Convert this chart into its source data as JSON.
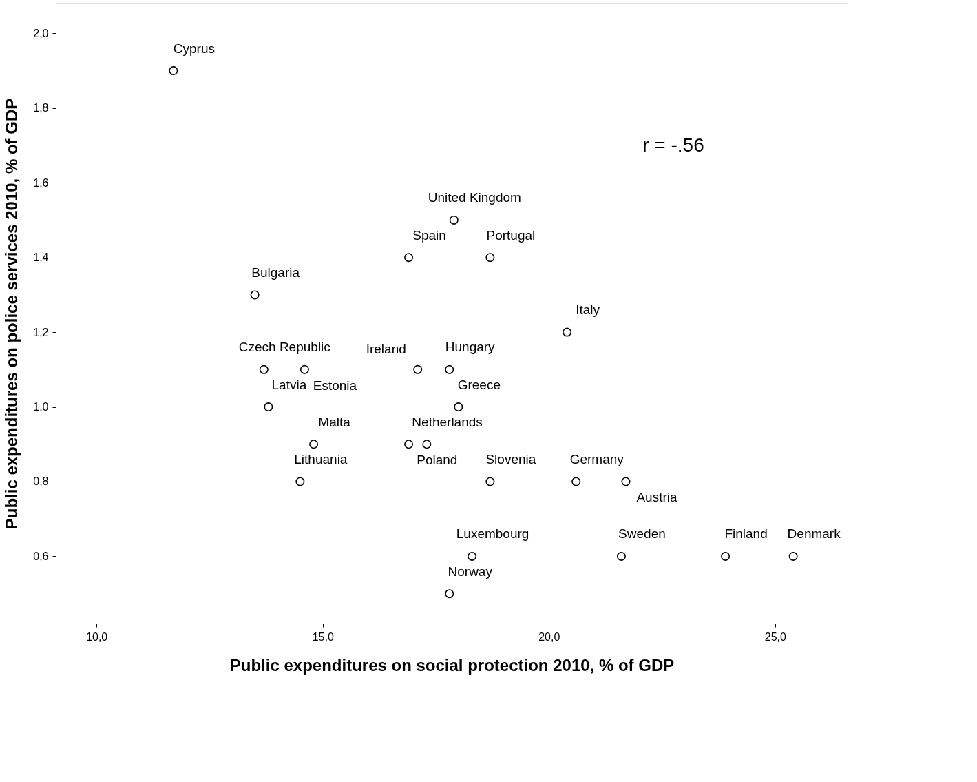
{
  "chart_data": {
    "type": "scatter",
    "xlabel": "Public expenditures on social protection 2010, % of GDP",
    "ylabel": "Public expenditures on police services 2010, % of GDP",
    "x": [
      11.7,
      17.9,
      16.9,
      18.7,
      13.5,
      20.4,
      13.7,
      14.6,
      13.8,
      17.1,
      17.8,
      18.0,
      14.8,
      16.9,
      17.3,
      14.5,
      18.7,
      20.6,
      21.7,
      18.3,
      21.6,
      23.9,
      25.4,
      17.8
    ],
    "values": [
      1.9,
      1.5,
      1.4,
      1.4,
      1.3,
      1.2,
      1.1,
      1.1,
      1.0,
      1.1,
      1.1,
      1.0,
      0.9,
      0.9,
      0.9,
      0.8,
      0.8,
      0.8,
      0.8,
      0.6,
      0.6,
      0.6,
      0.6,
      0.5
    ],
    "color": "#000000",
    "marker": "circle",
    "xlim": [
      9.1,
      26.6
    ],
    "ylim": [
      0.42,
      2.08
    ],
    "xticks": [
      {
        "value": 10,
        "label": "10,0"
      },
      {
        "value": 15,
        "label": "15,0"
      },
      {
        "value": 20,
        "label": "20,0"
      },
      {
        "value": 25,
        "label": "25,0"
      }
    ],
    "yticks": [
      {
        "value": 0.6,
        "label": "0,6"
      },
      {
        "value": 0.8,
        "label": "0,8"
      },
      {
        "value": 1.0,
        "label": "1,0"
      },
      {
        "value": 1.2,
        "label": "1,2"
      },
      {
        "value": 1.4,
        "label": "1,4"
      },
      {
        "value": 1.6,
        "label": "1,6"
      },
      {
        "value": 1.8,
        "label": "1,8"
      },
      {
        "value": 2.0,
        "label": "2,0"
      }
    ],
    "grid": false,
    "annotations": [
      "r = -.56",
      {
        "text": "Cyprus",
        "x": 11.7,
        "y": 1.9
      },
      {
        "text": "United Kingdom",
        "x": 17.9,
        "y": 1.5
      },
      {
        "text": "Spain",
        "x": 16.9,
        "y": 1.4
      },
      {
        "text": "Portugal",
        "x": 18.7,
        "y": 1.4
      },
      {
        "text": "Bulgaria",
        "x": 13.5,
        "y": 1.3
      },
      {
        "text": "Italy",
        "x": 20.4,
        "y": 1.2
      },
      {
        "text": "Czech Republic",
        "x": 13.7,
        "y": 1.1
      },
      {
        "text": "Estonia",
        "x": 14.6,
        "y": 1.1
      },
      {
        "text": "Latvia",
        "x": 13.8,
        "y": 1.0
      },
      {
        "text": "Ireland",
        "x": 17.1,
        "y": 1.1
      },
      {
        "text": "Hungary",
        "x": 17.8,
        "y": 1.1
      },
      {
        "text": "Greece",
        "x": 18.0,
        "y": 1.0
      },
      {
        "text": "Malta",
        "x": 14.8,
        "y": 0.9
      },
      {
        "text": "Netherlands",
        "x": 16.9,
        "y": 0.9
      },
      {
        "text": "Poland",
        "x": 17.3,
        "y": 0.9
      },
      {
        "text": "Lithuania",
        "x": 14.5,
        "y": 0.8
      },
      {
        "text": "Slovenia",
        "x": 18.7,
        "y": 0.8
      },
      {
        "text": "Germany",
        "x": 20.6,
        "y": 0.8
      },
      {
        "text": "Austria",
        "x": 21.7,
        "y": 0.8
      },
      {
        "text": "Luxembourg",
        "x": 18.3,
        "y": 0.6
      },
      {
        "text": "Sweden",
        "x": 21.6,
        "y": 0.6
      },
      {
        "text": "Finland",
        "x": 23.9,
        "y": 0.6
      },
      {
        "text": "Denmark",
        "x": 25.4,
        "y": 0.6
      },
      {
        "text": "Norway",
        "x": 17.8,
        "y": 0.5
      }
    ]
  }
}
